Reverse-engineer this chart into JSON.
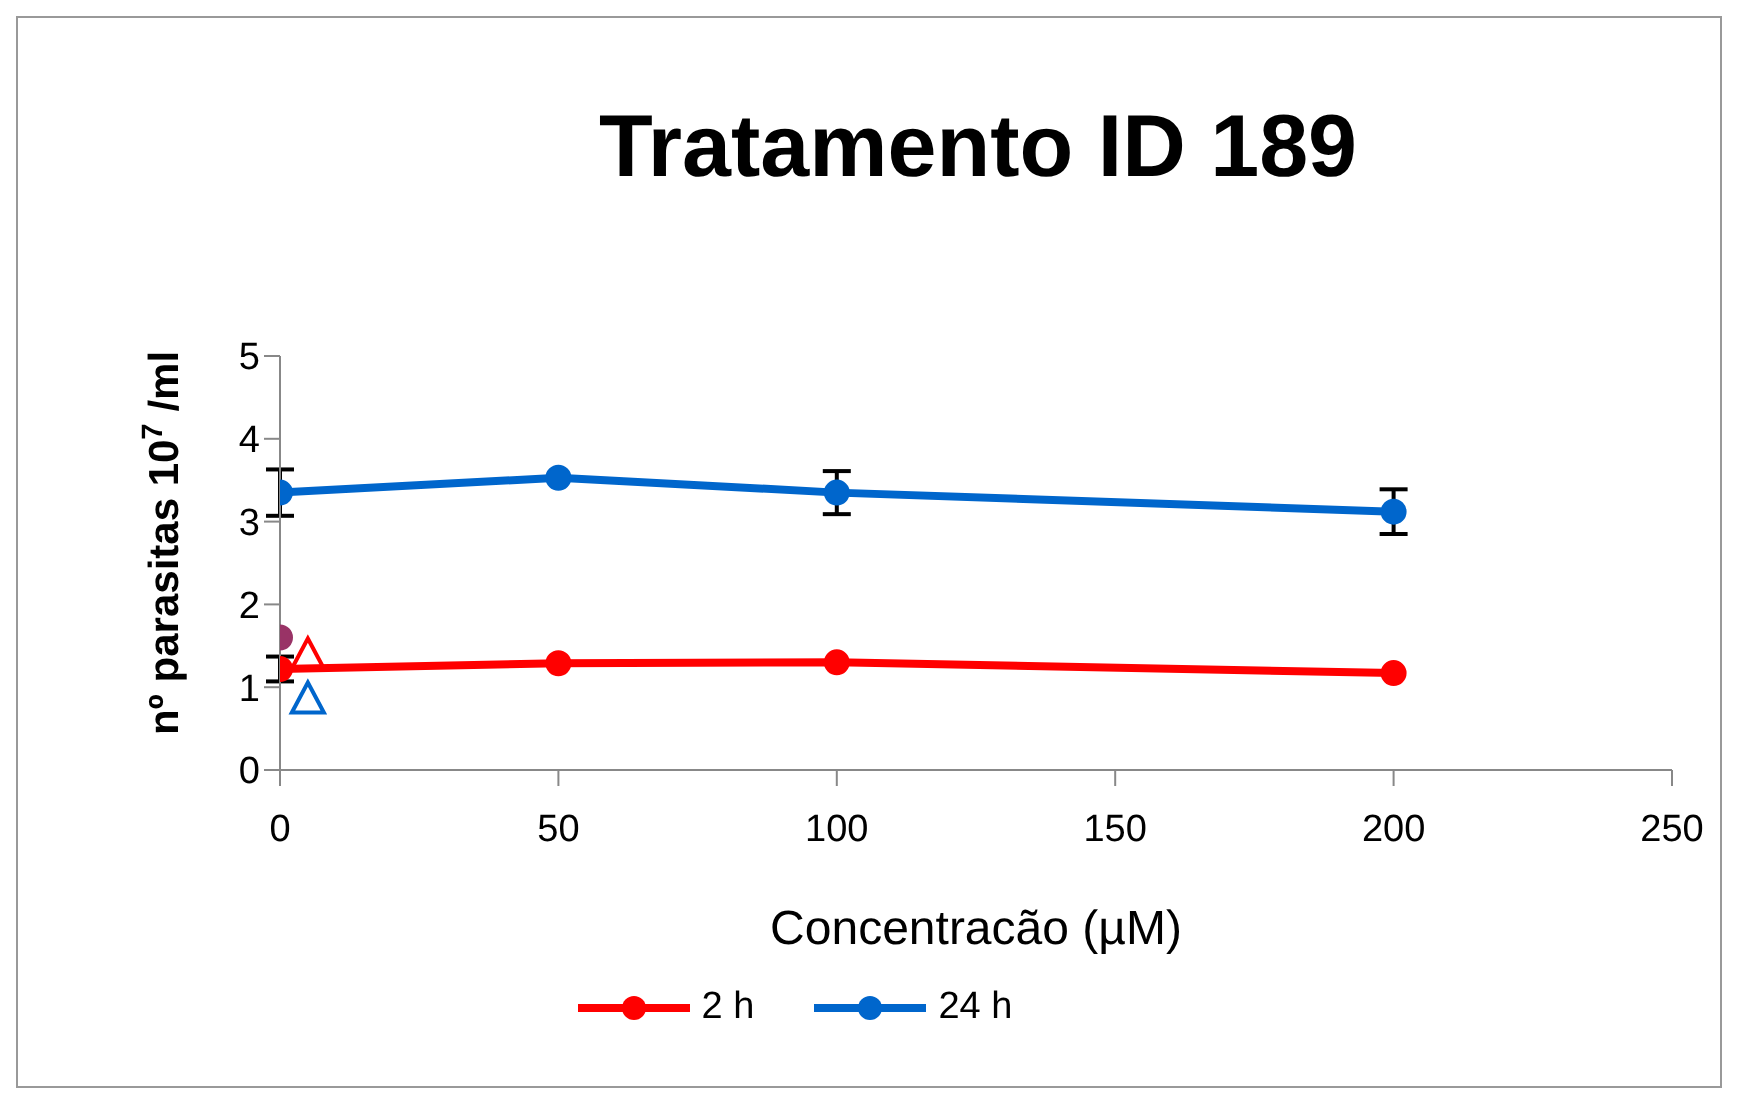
{
  "chart_data": {
    "type": "line",
    "title": "Tratamento ID 189",
    "xlabel": "Concentracão (µM)",
    "ylabel": "nº parasitas 10$^{7}$ /ml",
    "xlim": [
      0,
      250
    ],
    "xticks": [
      0,
      50,
      100,
      150,
      200,
      250
    ],
    "ylim": [
      0,
      5
    ],
    "yticks": [
      0,
      1,
      2,
      3,
      4,
      5
    ],
    "grid": false,
    "legend": "bottom",
    "marker": "circle",
    "series": [
      {
        "name": "2 h",
        "color": "#ff0000",
        "x": [
          0,
          50,
          100,
          200
        ],
        "values": [
          1.22,
          1.29,
          1.3,
          1.17
        ],
        "errors": [
          0.15,
          null,
          null,
          null
        ]
      },
      {
        "name": "24 h",
        "color": "#0066cc",
        "x": [
          0,
          50,
          100,
          200
        ],
        "values": [
          3.35,
          3.53,
          3.35,
          3.12
        ],
        "errors": [
          0.28,
          null,
          0.26,
          0.27
        ]
      },
      {
        "type": "scatter",
        "color": "#993366",
        "x": [
          0
        ],
        "values": [
          1.6
        ]
      },
      {
        "type": "scatter",
        "color": "#ff0000",
        "marker": "triangle",
        "x": [
          5
        ],
        "values": [
          1.37
        ]
      },
      {
        "type": "scatter",
        "color": "#0066cc",
        "marker": "triangle",
        "x": [
          5
        ],
        "values": [
          0.84
        ]
      }
    ]
  }
}
